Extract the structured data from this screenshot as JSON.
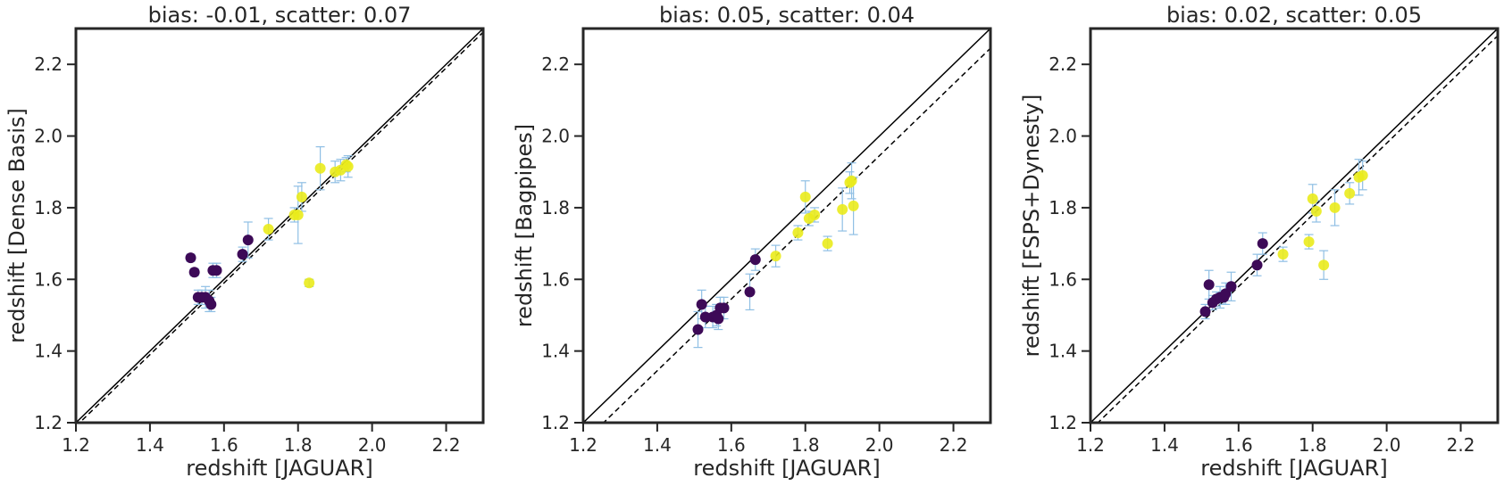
{
  "chart_data": [
    {
      "type": "scatter",
      "title": "bias: -0.01, scatter: 0.07",
      "xlabel": "redshift [JAGUAR]",
      "ylabel": "redshift [Dense Basis]",
      "xlim": [
        1.2,
        2.3
      ],
      "ylim": [
        1.2,
        2.3
      ],
      "xticks": [
        "1.2",
        "1.4",
        "1.6",
        "1.8",
        "2.0",
        "2.2"
      ],
      "yticks": [
        "1.2",
        "1.4",
        "1.6",
        "1.8",
        "2.0",
        "2.2"
      ],
      "grid": false,
      "reference_lines": {
        "one_to_one": "solid",
        "bias_offset": -0.01,
        "bias_style": "dashed"
      },
      "colors": {
        "low_group": "#3d0a57",
        "high_group": "#eaeb1c",
        "errorbar": "#8fbfe4"
      },
      "points": [
        {
          "x": 1.51,
          "y": 1.66,
          "err": 0.01,
          "group": "low"
        },
        {
          "x": 1.52,
          "y": 1.62,
          "err": 0.01,
          "group": "low"
        },
        {
          "x": 1.53,
          "y": 1.55,
          "err": 0.02,
          "group": "low"
        },
        {
          "x": 1.54,
          "y": 1.55,
          "err": 0.02,
          "group": "low"
        },
        {
          "x": 1.55,
          "y": 1.55,
          "err": 0.03,
          "group": "low"
        },
        {
          "x": 1.56,
          "y": 1.54,
          "err": 0.03,
          "group": "low"
        },
        {
          "x": 1.565,
          "y": 1.53,
          "err": 0.02,
          "group": "low"
        },
        {
          "x": 1.57,
          "y": 1.625,
          "err": 0.02,
          "group": "low"
        },
        {
          "x": 1.58,
          "y": 1.625,
          "err": 0.02,
          "group": "low"
        },
        {
          "x": 1.65,
          "y": 1.67,
          "err": 0.02,
          "group": "low"
        },
        {
          "x": 1.665,
          "y": 1.71,
          "err": 0.05,
          "group": "low"
        },
        {
          "x": 1.72,
          "y": 1.74,
          "err": 0.03,
          "group": "high"
        },
        {
          "x": 1.79,
          "y": 1.78,
          "err": 0.02,
          "group": "high"
        },
        {
          "x": 1.8,
          "y": 1.78,
          "err": 0.08,
          "group": "high"
        },
        {
          "x": 1.81,
          "y": 1.83,
          "err": 0.04,
          "group": "high"
        },
        {
          "x": 1.83,
          "y": 1.59,
          "err": 0.01,
          "group": "high"
        },
        {
          "x": 1.86,
          "y": 1.91,
          "err": 0.06,
          "group": "high"
        },
        {
          "x": 1.9,
          "y": 1.9,
          "err": 0.03,
          "group": "high"
        },
        {
          "x": 1.915,
          "y": 1.905,
          "err": 0.03,
          "group": "high"
        },
        {
          "x": 1.93,
          "y": 1.92,
          "err": 0.02,
          "group": "high"
        },
        {
          "x": 1.935,
          "y": 1.915,
          "err": 0.03,
          "group": "high"
        }
      ]
    },
    {
      "type": "scatter",
      "title": "bias: 0.05, scatter: 0.04",
      "xlabel": "redshift [JAGUAR]",
      "ylabel": "redshift [Bagpipes]",
      "xlim": [
        1.2,
        2.3
      ],
      "ylim": [
        1.2,
        2.3
      ],
      "xticks": [
        "1.2",
        "1.4",
        "1.6",
        "1.8",
        "2.0",
        "2.2"
      ],
      "yticks": [
        "1.2",
        "1.4",
        "1.6",
        "1.8",
        "2.0",
        "2.2"
      ],
      "grid": false,
      "reference_lines": {
        "one_to_one": "solid",
        "bias_offset": -0.055,
        "bias_style": "dashed"
      },
      "colors": {
        "low_group": "#3d0a57",
        "high_group": "#eaeb1c",
        "errorbar": "#8fbfe4"
      },
      "points": [
        {
          "x": 1.51,
          "y": 1.46,
          "err": 0.05,
          "group": "low"
        },
        {
          "x": 1.52,
          "y": 1.53,
          "err": 0.04,
          "group": "low"
        },
        {
          "x": 1.53,
          "y": 1.495,
          "err": 0.03,
          "group": "low"
        },
        {
          "x": 1.55,
          "y": 1.495,
          "err": 0.03,
          "group": "low"
        },
        {
          "x": 1.56,
          "y": 1.5,
          "err": 0.03,
          "group": "low"
        },
        {
          "x": 1.565,
          "y": 1.49,
          "err": 0.03,
          "group": "low"
        },
        {
          "x": 1.57,
          "y": 1.52,
          "err": 0.03,
          "group": "low"
        },
        {
          "x": 1.58,
          "y": 1.52,
          "err": 0.03,
          "group": "low"
        },
        {
          "x": 1.65,
          "y": 1.565,
          "err": 0.05,
          "group": "low"
        },
        {
          "x": 1.665,
          "y": 1.655,
          "err": 0.03,
          "group": "low"
        },
        {
          "x": 1.72,
          "y": 1.665,
          "err": 0.03,
          "group": "high"
        },
        {
          "x": 1.78,
          "y": 1.73,
          "err": 0.02,
          "group": "high"
        },
        {
          "x": 1.8,
          "y": 1.83,
          "err": 0.045,
          "group": "high"
        },
        {
          "x": 1.81,
          "y": 1.77,
          "err": 0.02,
          "group": "high"
        },
        {
          "x": 1.825,
          "y": 1.78,
          "err": 0.02,
          "group": "high"
        },
        {
          "x": 1.86,
          "y": 1.7,
          "err": 0.02,
          "group": "high"
        },
        {
          "x": 1.9,
          "y": 1.795,
          "err": 0.06,
          "group": "high"
        },
        {
          "x": 1.92,
          "y": 1.87,
          "err": 0.03,
          "group": "high"
        },
        {
          "x": 1.925,
          "y": 1.875,
          "err": 0.05,
          "group": "high"
        },
        {
          "x": 1.93,
          "y": 1.805,
          "err": 0.08,
          "group": "high"
        }
      ]
    },
    {
      "type": "scatter",
      "title": "bias: 0.02, scatter: 0.05",
      "xlabel": "redshift [JAGUAR]",
      "ylabel": "redshift [FSPS+Dynesty]",
      "xlim": [
        1.2,
        2.3
      ],
      "ylim": [
        1.2,
        2.3
      ],
      "xticks": [
        "1.2",
        "1.4",
        "1.6",
        "1.8",
        "2.0",
        "2.2"
      ],
      "yticks": [
        "1.2",
        "1.4",
        "1.6",
        "1.8",
        "2.0",
        "2.2"
      ],
      "grid": false,
      "reference_lines": {
        "one_to_one": "solid",
        "bias_offset": -0.02,
        "bias_style": "dashed"
      },
      "colors": {
        "low_group": "#3d0a57",
        "high_group": "#eaeb1c",
        "errorbar": "#8fbfe4"
      },
      "points": [
        {
          "x": 1.51,
          "y": 1.51,
          "err": 0.02,
          "group": "low"
        },
        {
          "x": 1.52,
          "y": 1.585,
          "err": 0.04,
          "group": "low"
        },
        {
          "x": 1.53,
          "y": 1.535,
          "err": 0.02,
          "group": "low"
        },
        {
          "x": 1.54,
          "y": 1.545,
          "err": 0.02,
          "group": "low"
        },
        {
          "x": 1.55,
          "y": 1.55,
          "err": 0.03,
          "group": "low"
        },
        {
          "x": 1.56,
          "y": 1.55,
          "err": 0.02,
          "group": "low"
        },
        {
          "x": 1.565,
          "y": 1.56,
          "err": 0.03,
          "group": "low"
        },
        {
          "x": 1.58,
          "y": 1.58,
          "err": 0.04,
          "group": "low"
        },
        {
          "x": 1.65,
          "y": 1.64,
          "err": 0.03,
          "group": "low"
        },
        {
          "x": 1.665,
          "y": 1.7,
          "err": 0.03,
          "group": "low"
        },
        {
          "x": 1.72,
          "y": 1.67,
          "err": 0.02,
          "group": "high"
        },
        {
          "x": 1.79,
          "y": 1.705,
          "err": 0.02,
          "group": "high"
        },
        {
          "x": 1.8,
          "y": 1.825,
          "err": 0.04,
          "group": "high"
        },
        {
          "x": 1.81,
          "y": 1.79,
          "err": 0.03,
          "group": "high"
        },
        {
          "x": 1.83,
          "y": 1.64,
          "err": 0.04,
          "group": "high"
        },
        {
          "x": 1.86,
          "y": 1.8,
          "err": 0.05,
          "group": "high"
        },
        {
          "x": 1.9,
          "y": 1.84,
          "err": 0.03,
          "group": "high"
        },
        {
          "x": 1.925,
          "y": 1.885,
          "err": 0.05,
          "group": "high"
        },
        {
          "x": 1.935,
          "y": 1.89,
          "err": 0.04,
          "group": "high"
        }
      ]
    }
  ]
}
